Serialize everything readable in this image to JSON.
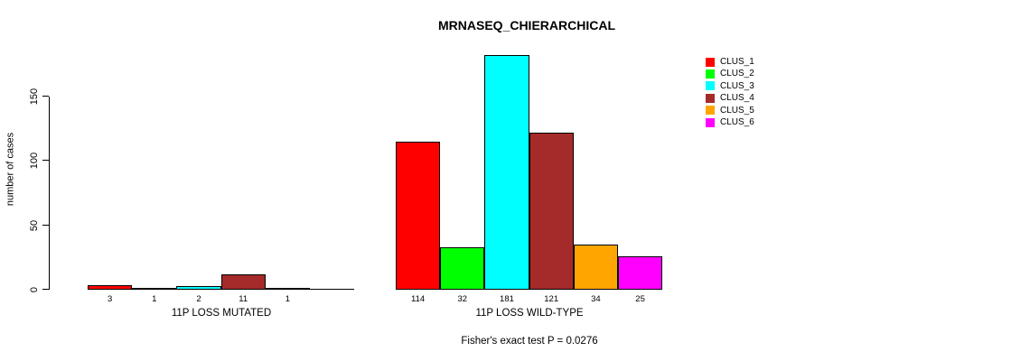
{
  "chart_data": {
    "type": "bar",
    "title": "MRNASEQ_CHIERARCHICAL",
    "ylabel": "number of cases",
    "xlabel": "",
    "yticks": [
      0,
      50,
      100,
      150
    ],
    "ylim": [
      0,
      181
    ],
    "grid": false,
    "legend_position": "top-right-outside",
    "annotation": "Fisher's exact test P = 0.0276",
    "groups": [
      {
        "label": "11P LOSS MUTATED",
        "values": [
          3,
          1,
          2,
          11,
          1,
          0
        ],
        "bar_labels": [
          "3",
          "1",
          "2",
          "11",
          "1",
          ""
        ]
      },
      {
        "label": "11P LOSS WILD-TYPE",
        "values": [
          114,
          32,
          181,
          121,
          34,
          25
        ],
        "bar_labels": [
          "114",
          "32",
          "181",
          "121",
          "34",
          "25"
        ]
      }
    ],
    "series": [
      {
        "name": "CLUS_1",
        "color": "#FF0000",
        "values": [
          3,
          114
        ]
      },
      {
        "name": "CLUS_2",
        "color": "#00FF00",
        "values": [
          1,
          32
        ]
      },
      {
        "name": "CLUS_3",
        "color": "#00FFFF",
        "values": [
          2,
          181
        ]
      },
      {
        "name": "CLUS_4",
        "color": "#A52A2A",
        "values": [
          11,
          121
        ]
      },
      {
        "name": "CLUS_5",
        "color": "#FFA500",
        "values": [
          1,
          34
        ]
      },
      {
        "name": "CLUS_6",
        "color": "#FF00FF",
        "values": [
          0,
          25
        ]
      }
    ],
    "legend": [
      {
        "label": "CLUS_1",
        "color": "#FF0000"
      },
      {
        "label": "CLUS_2",
        "color": "#00FF00"
      },
      {
        "label": "CLUS_3",
        "color": "#00FFFF"
      },
      {
        "label": "CLUS_4",
        "color": "#A52A2A"
      },
      {
        "label": "CLUS_5",
        "color": "#FFA500"
      },
      {
        "label": "CLUS_6",
        "color": "#FF00FF"
      }
    ],
    "axis_color": "#000000",
    "bar_border_color": "#000000"
  }
}
